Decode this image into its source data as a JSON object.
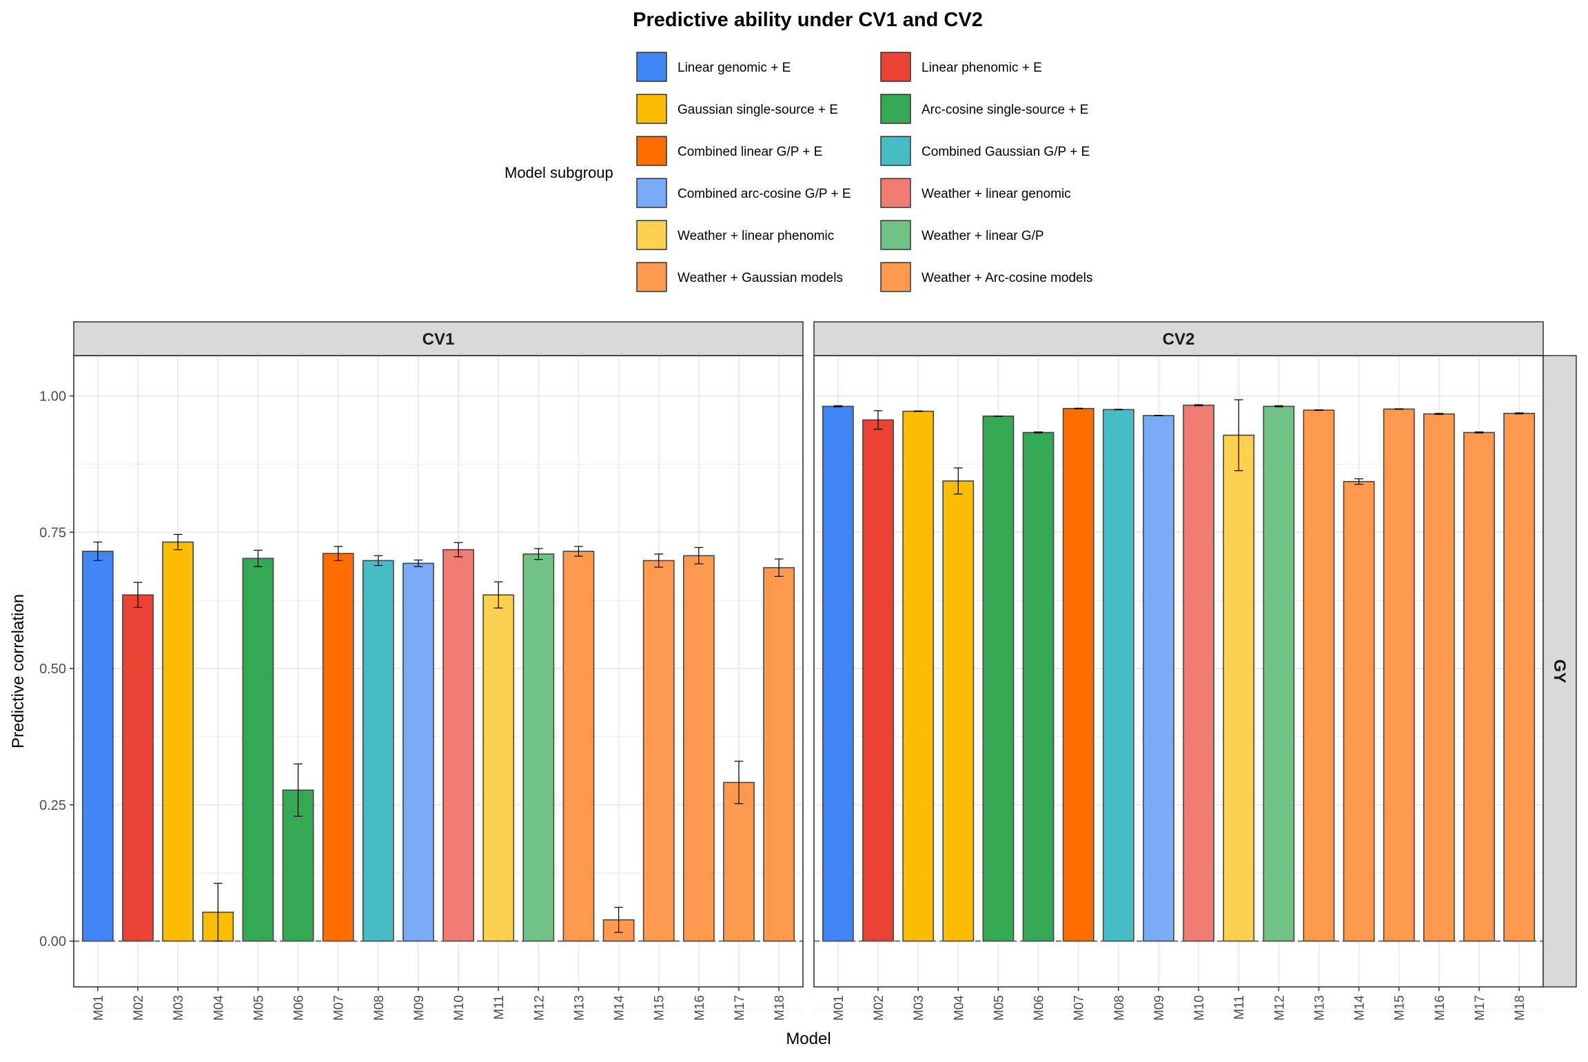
{
  "chart_data": {
    "type": "bar",
    "title": "Predictive ability under CV1 and CV2",
    "xlabel": "Model",
    "ylabel": "Predictive correlation",
    "ylim": [
      -0.084,
      1.074
    ],
    "yticks": [
      "0.00",
      "0.25",
      "0.50",
      "0.75",
      "1.00"
    ],
    "ytick_values": [
      0,
      0.25,
      0.5,
      0.75,
      1.0
    ],
    "grid": true,
    "legend": {
      "title": "Model subgroup",
      "placement": "top",
      "items": [
        {
          "label": "Linear genomic + E",
          "color": "#4285F4"
        },
        {
          "label": "Linear phenomic + E",
          "color": "#EA4335"
        },
        {
          "label": "Gaussian single-source + E",
          "color": "#FBBC04"
        },
        {
          "label": "Arc-cosine single-source + E",
          "color": "#34A853"
        },
        {
          "label": "Combined linear G/P + E",
          "color": "#FF6D01"
        },
        {
          "label": "Combined Gaussian G/P + E",
          "color": "#46BDC6"
        },
        {
          "label": "Combined arc-cosine G/P + E",
          "color": "#7BAAF7"
        },
        {
          "label": "Weather + linear genomic",
          "color": "#F07B72"
        },
        {
          "label": "Weather + linear phenomic",
          "color": "#FCD04F"
        },
        {
          "label": "Weather + linear G/P",
          "color": "#71C287"
        },
        {
          "label": "Weather + Gaussian models",
          "color": "#FF994D"
        },
        {
          "label": "Weather + Arc-cosine models",
          "color": "#FF994D"
        }
      ]
    },
    "categories": [
      "M01",
      "M02",
      "M03",
      "M04",
      "M05",
      "M06",
      "M07",
      "M08",
      "M09",
      "M10",
      "M11",
      "M12",
      "M13",
      "M14",
      "M15",
      "M16",
      "M17",
      "M18"
    ],
    "category_group": [
      0,
      1,
      2,
      2,
      3,
      3,
      4,
      5,
      6,
      7,
      8,
      9,
      10,
      10,
      10,
      11,
      11,
      11
    ],
    "row_strip": "GY",
    "panels": [
      {
        "name": "CV1",
        "values": [
          0.715,
          0.635,
          0.732,
          0.053,
          0.702,
          0.277,
          0.711,
          0.698,
          0.693,
          0.718,
          0.635,
          0.71,
          0.715,
          0.039,
          0.698,
          0.707,
          0.291,
          0.685
        ],
        "errors": [
          0.017,
          0.023,
          0.014,
          0.053,
          0.015,
          0.048,
          0.013,
          0.009,
          0.006,
          0.013,
          0.024,
          0.01,
          0.009,
          0.023,
          0.012,
          0.015,
          0.039,
          0.016
        ]
      },
      {
        "name": "CV2",
        "values": [
          0.981,
          0.956,
          0.972,
          0.844,
          0.963,
          0.933,
          0.977,
          0.975,
          0.964,
          0.983,
          0.928,
          0.981,
          0.974,
          0.843,
          0.976,
          0.967,
          0.933,
          0.968
        ],
        "errors": [
          0.001,
          0.017,
          0.0005,
          0.024,
          0.0003,
          0.001,
          0.0005,
          0.0005,
          0.0005,
          0.001,
          0.065,
          0.001,
          0.0005,
          0.005,
          0.0005,
          0.001,
          0.001,
          0.001
        ]
      }
    ]
  }
}
